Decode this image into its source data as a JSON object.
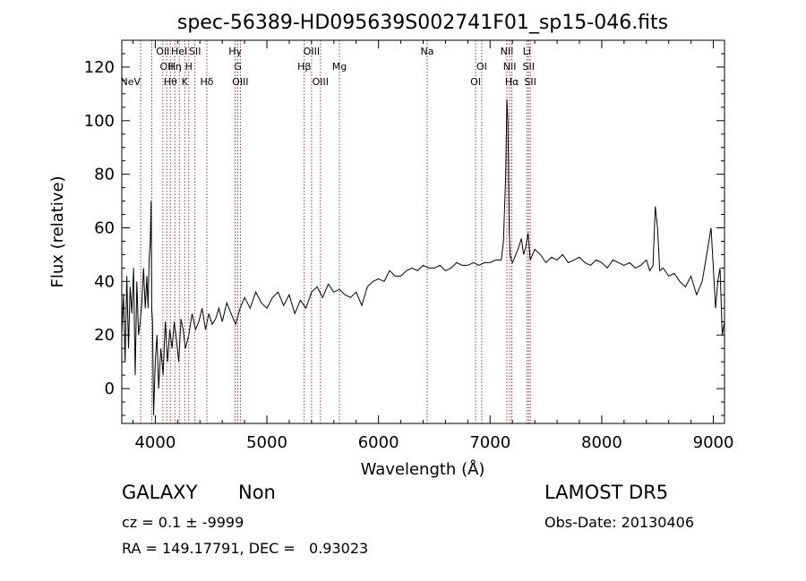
{
  "chart_data": {
    "type": "line",
    "title": "spec-56389-HD095639S002741F01_sp15-046.fits",
    "xlabel": "Wavelength (Å)",
    "ylabel": "Flux (relative)",
    "xlim": [
      3700,
      9100
    ],
    "ylim": [
      -13,
      130
    ],
    "xticks": [
      4000,
      5000,
      6000,
      7000,
      8000,
      9000
    ],
    "yticks": [
      0,
      20,
      40,
      60,
      80,
      100,
      120
    ],
    "grid": false,
    "line_color": "#000000",
    "marker_color": "#8b0000",
    "series": [
      {
        "x": [
          3700,
          3715,
          3730,
          3745,
          3760,
          3775,
          3790,
          3805,
          3820,
          3835,
          3850,
          3865,
          3880,
          3895,
          3910,
          3925,
          3935,
          3945,
          3955,
          3962,
          3968,
          3975,
          3985,
          4000,
          4015,
          4030,
          4050,
          4070,
          4090,
          4110,
          4130,
          4150,
          4170,
          4190,
          4210,
          4230,
          4250,
          4270,
          4300,
          4330,
          4360,
          4390,
          4420,
          4450,
          4480,
          4510,
          4540,
          4570,
          4600,
          4640,
          4680,
          4720,
          4760,
          4800,
          4850,
          4900,
          4950,
          5000,
          5050,
          5100,
          5150,
          5200,
          5250,
          5300,
          5350,
          5400,
          5450,
          5500,
          5550,
          5600,
          5650,
          5700,
          5750,
          5800,
          5850,
          5900,
          5950,
          6000,
          6050,
          6100,
          6150,
          6200,
          6250,
          6300,
          6350,
          6400,
          6450,
          6500,
          6550,
          6600,
          6650,
          6700,
          6750,
          6800,
          6850,
          6900,
          6950,
          7000,
          7050,
          7100,
          7120,
          7140,
          7150,
          7160,
          7170,
          7180,
          7190,
          7200,
          7220,
          7250,
          7280,
          7300,
          7320,
          7340,
          7360,
          7400,
          7450,
          7500,
          7550,
          7600,
          7650,
          7700,
          7750,
          7800,
          7850,
          7900,
          7950,
          8000,
          8050,
          8100,
          8150,
          8200,
          8250,
          8300,
          8350,
          8400,
          8430,
          8460,
          8480,
          8500,
          8520,
          8550,
          8600,
          8650,
          8700,
          8750,
          8800,
          8850,
          8880,
          8900,
          8920,
          8940,
          8960,
          8980,
          9000,
          9020,
          9040,
          9060,
          9080,
          9100
        ],
        "y": [
          20,
          35,
          10,
          42,
          15,
          38,
          28,
          45,
          5,
          40,
          20,
          25,
          32,
          45,
          30,
          42,
          30,
          48,
          55,
          70,
          30,
          25,
          -10,
          10,
          20,
          0,
          15,
          5,
          25,
          10,
          22,
          15,
          25,
          18,
          10,
          26,
          22,
          15,
          20,
          28,
          22,
          25,
          30,
          22,
          28,
          24,
          26,
          30,
          25,
          32,
          28,
          24,
          30,
          34,
          30,
          36,
          32,
          30,
          34,
          36,
          31,
          35,
          28,
          33,
          30,
          36,
          38,
          34,
          39,
          36,
          37,
          35,
          34,
          36,
          31,
          38,
          40,
          41,
          40,
          44,
          42,
          42,
          44,
          45,
          44,
          46,
          45,
          45,
          46,
          44,
          45,
          47,
          46,
          46,
          47,
          46,
          47,
          47,
          48,
          48,
          55,
          80,
          108,
          100,
          60,
          50,
          48,
          47,
          49,
          52,
          56,
          50,
          53,
          58,
          48,
          52,
          50,
          47,
          49,
          48,
          50,
          47,
          48,
          49,
          47,
          46,
          48,
          47,
          45,
          48,
          47,
          46,
          47,
          45,
          46,
          48,
          44,
          46,
          68,
          60,
          44,
          45,
          42,
          43,
          40,
          38,
          42,
          35,
          38,
          40,
          45,
          50,
          55,
          60,
          45,
          30,
          40,
          45,
          20,
          25
        ]
      }
    ],
    "lines": [
      {
        "x": 3869,
        "label": "NeV",
        "row": 2,
        "anchor": "end"
      },
      {
        "x": 3968,
        "label": "",
        "row": 0,
        "anchor": "middle"
      },
      {
        "x": 4068,
        "label": "OII",
        "row": 0,
        "anchor": "middle"
      },
      {
        "x": 4102,
        "label": "OII",
        "row": 1,
        "anchor": "middle"
      },
      {
        "x": 4135,
        "label": "Hθ",
        "row": 2,
        "anchor": "middle"
      },
      {
        "x": 4175,
        "label": "Hη",
        "row": 1,
        "anchor": "middle"
      },
      {
        "x": 4215,
        "label": "HeI",
        "row": 0,
        "anchor": "middle"
      },
      {
        "x": 4264,
        "label": "K",
        "row": 2,
        "anchor": "middle"
      },
      {
        "x": 4300,
        "label": "H",
        "row": 1,
        "anchor": "middle"
      },
      {
        "x": 4356,
        "label": "SII",
        "row": 0,
        "anchor": "middle"
      },
      {
        "x": 4462,
        "label": "Hδ",
        "row": 2,
        "anchor": "middle"
      },
      {
        "x": 4716,
        "label": "Hγ",
        "row": 0,
        "anchor": "middle"
      },
      {
        "x": 4740,
        "label": "G",
        "row": 1,
        "anchor": "middle"
      },
      {
        "x": 4762,
        "label": "OIII",
        "row": 2,
        "anchor": "middle"
      },
      {
        "x": 5335,
        "label": "Hβ",
        "row": 1,
        "anchor": "middle"
      },
      {
        "x": 5400,
        "label": "OIII",
        "row": 0,
        "anchor": "middle"
      },
      {
        "x": 5480,
        "label": "OIII",
        "row": 2,
        "anchor": "middle"
      },
      {
        "x": 5650,
        "label": "Mg",
        "row": 1,
        "anchor": "middle"
      },
      {
        "x": 6436,
        "label": "Na",
        "row": 0,
        "anchor": "middle"
      },
      {
        "x": 6870,
        "label": "OI",
        "row": 2,
        "anchor": "middle"
      },
      {
        "x": 6925,
        "label": "OI",
        "row": 1,
        "anchor": "middle"
      },
      {
        "x": 7150,
        "label": "NII",
        "row": 0,
        "anchor": "middle"
      },
      {
        "x": 7175,
        "label": "NII",
        "row": 1,
        "anchor": "middle"
      },
      {
        "x": 7195,
        "label": "Hα",
        "row": 2,
        "anchor": "middle"
      },
      {
        "x": 7330,
        "label": "Li",
        "row": 0,
        "anchor": "middle"
      },
      {
        "x": 7345,
        "label": "SII",
        "row": 1,
        "anchor": "middle"
      },
      {
        "x": 7360,
        "label": "SII",
        "row": 2,
        "anchor": "middle"
      }
    ]
  },
  "footer": {
    "object_type": "GALAXY",
    "subclass": "Non",
    "survey": "LAMOST DR5",
    "cz": "cz = 0.1 ± -9999",
    "obs_date": "Obs-Date: 20130406",
    "radec": "RA = 149.17791, DEC =   0.93023"
  }
}
